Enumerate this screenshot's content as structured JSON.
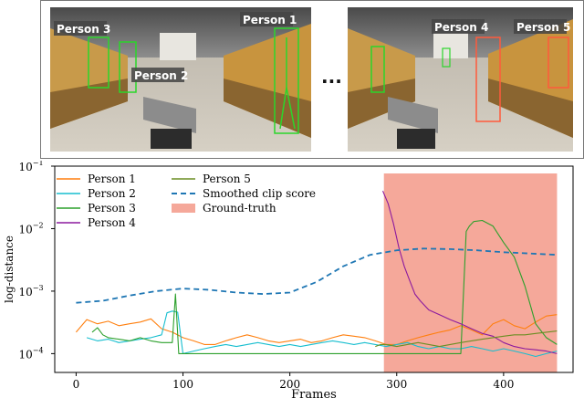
{
  "frames": {
    "left_labels": [
      "Person 3",
      "Person 1",
      "Person 2"
    ],
    "right_labels": [
      "Person 4",
      "Person 5"
    ],
    "ellipsis": "···"
  },
  "chart_data": {
    "type": "line",
    "title": "",
    "xlabel": "Frames",
    "ylabel": "log-distance",
    "xlim": [
      -20,
      465
    ],
    "ylim": [
      5e-05,
      0.1
    ],
    "y_scale": "log",
    "x_ticks": [
      "0",
      "100",
      "200",
      "300",
      "400"
    ],
    "x_tick_values": [
      0,
      100,
      200,
      300,
      400
    ],
    "y_ticks": [
      {
        "base": "10",
        "exp": "−1",
        "value": 0.1
      },
      {
        "base": "10",
        "exp": "−2",
        "value": 0.01
      },
      {
        "base": "10",
        "exp": "−3",
        "value": 0.001
      },
      {
        "base": "10",
        "exp": "−4",
        "value": 0.0001
      }
    ],
    "grid": false,
    "legend_position": "top-left",
    "ground_truth": {
      "name": "Ground-truth",
      "x_start": 288,
      "x_end": 450,
      "color": "#f5a89a"
    },
    "series": [
      {
        "name": "Person 1",
        "color": "#ff7f0e",
        "x": [
          0,
          10,
          20,
          30,
          40,
          50,
          60,
          70,
          80,
          90,
          100,
          110,
          120,
          130,
          140,
          150,
          160,
          170,
          180,
          190,
          200,
          210,
          220,
          230,
          240,
          250,
          260,
          270,
          280,
          290,
          300,
          310,
          320,
          330,
          340,
          350,
          360,
          370,
          380,
          390,
          400,
          410,
          420,
          430,
          440,
          450
        ],
        "y": [
          0.00022,
          0.00035,
          0.0003,
          0.00033,
          0.00028,
          0.0003,
          0.00032,
          0.00036,
          0.00025,
          0.00022,
          0.00018,
          0.00016,
          0.00014,
          0.00014,
          0.00016,
          0.00018,
          0.0002,
          0.00018,
          0.00016,
          0.00015,
          0.00016,
          0.00017,
          0.00015,
          0.00016,
          0.00018,
          0.0002,
          0.00019,
          0.00018,
          0.00016,
          0.00014,
          0.00014,
          0.00016,
          0.00018,
          0.0002,
          0.00022,
          0.00024,
          0.00028,
          0.00024,
          0.0002,
          0.0003,
          0.00035,
          0.00028,
          0.00025,
          0.00032,
          0.0004,
          0.00042
        ]
      },
      {
        "name": "Person 2",
        "color": "#17becf",
        "x": [
          10,
          20,
          30,
          40,
          50,
          60,
          70,
          80,
          85,
          90,
          95,
          100,
          110,
          120,
          130,
          140,
          150,
          160,
          170,
          180,
          190,
          200,
          210,
          220,
          230,
          240,
          250,
          260,
          270,
          280,
          290,
          300,
          310,
          320,
          330,
          340,
          350,
          360,
          370,
          380,
          390,
          400,
          410,
          420,
          430,
          440,
          450
        ],
        "y": [
          0.00018,
          0.00016,
          0.00017,
          0.00015,
          0.00016,
          0.00017,
          0.00018,
          0.0002,
          0.00045,
          0.00048,
          0.00046,
          0.0001,
          0.00011,
          0.00012,
          0.00013,
          0.00014,
          0.00013,
          0.00014,
          0.00015,
          0.00014,
          0.00013,
          0.00014,
          0.00013,
          0.00014,
          0.00015,
          0.00016,
          0.00015,
          0.00014,
          0.00015,
          0.00014,
          0.00013,
          0.00014,
          0.00015,
          0.00013,
          0.00012,
          0.00013,
          0.00012,
          0.00012,
          0.00013,
          0.00012,
          0.00011,
          0.00012,
          0.00011,
          0.0001,
          9e-05,
          0.0001,
          0.00011
        ]
      },
      {
        "name": "Person 3",
        "color": "#2ca02c",
        "x": [
          15,
          20,
          25,
          30,
          40,
          50,
          60,
          70,
          80,
          90,
          93,
          96,
          360,
          365,
          368,
          372,
          380,
          390,
          400,
          410,
          420,
          430,
          440,
          450
        ],
        "y": [
          0.00022,
          0.00026,
          0.0002,
          0.00018,
          0.00017,
          0.00016,
          0.00018,
          0.00016,
          0.00015,
          0.00015,
          0.0009,
          0.0001,
          0.0001,
          0.009,
          0.011,
          0.013,
          0.0135,
          0.011,
          0.006,
          0.0035,
          0.0012,
          0.0003,
          0.00018,
          0.00014
        ]
      },
      {
        "name": "Person 4",
        "color": "#8b1a9e",
        "x": [
          287,
          292,
          297,
          302,
          307,
          312,
          317,
          322,
          330,
          340,
          350,
          360,
          370,
          380,
          390,
          400,
          410,
          420,
          430,
          440,
          450
        ],
        "y": [
          0.04,
          0.025,
          0.012,
          0.005,
          0.0025,
          0.0015,
          0.0009,
          0.0007,
          0.0005,
          0.00042,
          0.00035,
          0.0003,
          0.00025,
          0.00021,
          0.00019,
          0.00015,
          0.00013,
          0.00012,
          0.000115,
          0.00011,
          0.0001
        ]
      },
      {
        "name": "Person 5",
        "color": "#6b8e23",
        "x": [
          280,
          285,
          290,
          300,
          310,
          320,
          330,
          340,
          350,
          360,
          370,
          380,
          390,
          400,
          410,
          420,
          430,
          440,
          450
        ],
        "y": [
          0.00013,
          0.00014,
          0.00014,
          0.00013,
          0.00014,
          0.00015,
          0.00014,
          0.00013,
          0.00014,
          0.00015,
          0.00016,
          0.00017,
          0.00018,
          0.00019,
          0.0002,
          0.0002,
          0.00021,
          0.00022,
          0.00023
        ]
      },
      {
        "name": "Smoothed clip score",
        "color": "#1f77b4",
        "dashed": true,
        "x": [
          0,
          25,
          50,
          75,
          100,
          125,
          150,
          175,
          200,
          225,
          250,
          275,
          300,
          325,
          350,
          375,
          400,
          425,
          450
        ],
        "y": [
          0.00065,
          0.0007,
          0.00085,
          0.001,
          0.0011,
          0.00105,
          0.00095,
          0.0009,
          0.00095,
          0.0014,
          0.0025,
          0.0038,
          0.0045,
          0.0048,
          0.0047,
          0.0045,
          0.0042,
          0.004,
          0.0038
        ]
      }
    ]
  }
}
